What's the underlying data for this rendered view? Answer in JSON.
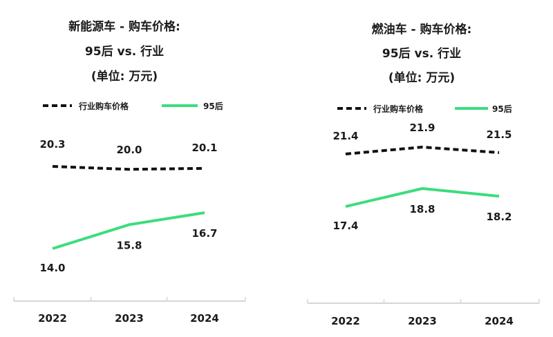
{
  "chart_data": [
    {
      "type": "line",
      "title_lines": [
        "新能源车 - 购车价格:",
        "95后 vs. 行业",
        "(单位: 万元)"
      ],
      "categories": [
        "2022",
        "2023",
        "2024"
      ],
      "series": [
        {
          "name": "行业购车价格",
          "values": [
            20.3,
            20.0,
            20.1
          ],
          "color": "#111111",
          "style": "dashed"
        },
        {
          "name": "95后",
          "values": [
            14.0,
            15.8,
            16.7
          ],
          "color": "#3ddc7e",
          "style": "solid"
        }
      ],
      "value_labels": [
        [
          "20.3",
          "20.0",
          "20.1"
        ],
        [
          "14.0",
          "15.8",
          "16.7"
        ]
      ]
    },
    {
      "type": "line",
      "title_lines": [
        "燃油车 - 购车价格:",
        "95后 vs. 行业",
        "(单位: 万元)"
      ],
      "categories": [
        "2022",
        "2023",
        "2024"
      ],
      "series": [
        {
          "name": "行业购车价格",
          "values": [
            21.4,
            21.9,
            21.5
          ],
          "color": "#111111",
          "style": "dashed"
        },
        {
          "name": "95后",
          "values": [
            17.4,
            18.8,
            18.2
          ],
          "color": "#3ddc7e",
          "style": "solid"
        }
      ],
      "value_labels": [
        [
          "21.4",
          "21.9",
          "21.5"
        ],
        [
          "17.4",
          "18.8",
          "18.2"
        ]
      ]
    }
  ]
}
